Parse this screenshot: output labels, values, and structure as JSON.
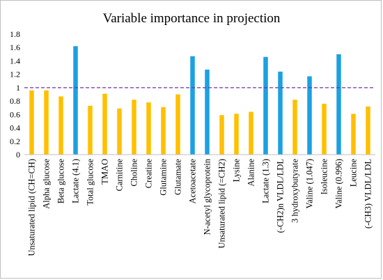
{
  "chart_data": {
    "type": "bar",
    "title": "Variable importance in projection",
    "xlabel": "",
    "ylabel": "",
    "ylim": [
      0,
      1.8
    ],
    "yticks": [
      "0",
      "0.2",
      "0.4",
      "0.6",
      "0.8",
      "1",
      "1.2",
      "1.4",
      "1.6",
      "1.8"
    ],
    "threshold": 1,
    "grid": false,
    "legend": "none",
    "colors": {
      "below": "#FFC000",
      "above": "#1BA1E2",
      "threshold_line": "#7030A0",
      "axis": "#bfbfbf"
    },
    "categories": [
      "Unsaturated lipid (CH=CH)",
      "Alpha glucose",
      "Beta glucose",
      "Lactate (4.1)",
      "Total glucose",
      "TMAO",
      "Carnitine",
      "Choline",
      "Creatine",
      "Glutamine",
      "Glutamate",
      "Acetoacetate",
      "N-acetyl glycoprotein",
      "Unsaturated lipid (=CH2)",
      "Lysine",
      "Alanine",
      "Lactate (1.3)",
      "(-CH2)n VLDL/LDL",
      "3 hydroxybutyrate",
      "Valine (1.047)",
      "Isoleucine",
      "Valine (0.996)",
      "Leucine",
      "(-CH3) VLDL/LDL"
    ],
    "values": [
      0.96,
      0.96,
      0.87,
      1.62,
      0.73,
      0.91,
      0.69,
      0.82,
      0.78,
      0.71,
      0.9,
      1.47,
      1.27,
      0.59,
      0.61,
      0.64,
      1.46,
      1.24,
      0.82,
      1.17,
      0.76,
      1.5,
      0.61,
      0.72
    ]
  }
}
